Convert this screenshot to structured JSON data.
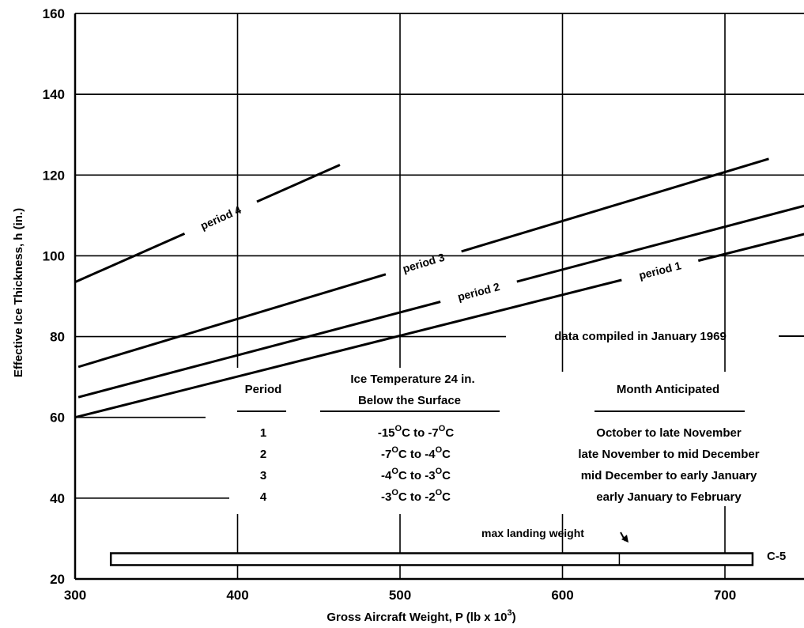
{
  "chart_data": {
    "type": "line",
    "xlabel": "Gross Aircraft Weight, P (lb x 10",
    "xlabel_sup": "3",
    "xlabel_end": ")",
    "ylabel": "Effective Ice Thickness, h (in.)",
    "xlim": [
      300,
      750
    ],
    "ylim": [
      20,
      160
    ],
    "x_ticks": [
      300,
      400,
      500,
      600,
      700
    ],
    "y_ticks": [
      20,
      40,
      60,
      80,
      100,
      120,
      140,
      160
    ],
    "grid": true,
    "series": [
      {
        "name": "period 4",
        "x": [
          300,
          463
        ],
        "y": [
          93.5,
          122.5
        ]
      },
      {
        "name": "period 3",
        "x": [
          302,
          727
        ],
        "y": [
          72.5,
          124
        ]
      },
      {
        "name": "period 2",
        "x": [
          302,
          750
        ],
        "y": [
          65,
          112.5
        ]
      },
      {
        "name": "period 1",
        "x": [
          300,
          750
        ],
        "y": [
          60,
          105.5
        ]
      }
    ],
    "annotations": {
      "data_compiled": "data compiled in January 1969",
      "max_landing_weight": "max landing weight",
      "c5_label": "C-5",
      "c5_range": [
        322,
        717
      ]
    },
    "table": {
      "headers": {
        "period": "Period",
        "temp_line1": "Ice Temperature 24 in.",
        "temp_line2": "Below the Surface",
        "month": "Month Anticipated"
      },
      "rows": [
        {
          "period": "1",
          "temp_a": "-15",
          "temp_b": "C to -7",
          "temp_c": "C",
          "month": "October to late November"
        },
        {
          "period": "2",
          "temp_a": "-7",
          "temp_b": "C to -4",
          "temp_c": "C",
          "month": "late November to mid December"
        },
        {
          "period": "3",
          "temp_a": "-4",
          "temp_b": "C to -3",
          "temp_c": "C",
          "month": "mid December to early January"
        },
        {
          "period": "4",
          "temp_a": "-3",
          "temp_b": "C to -2",
          "temp_c": "C",
          "month": "early January to February"
        }
      ],
      "degree_sup": "O"
    }
  }
}
